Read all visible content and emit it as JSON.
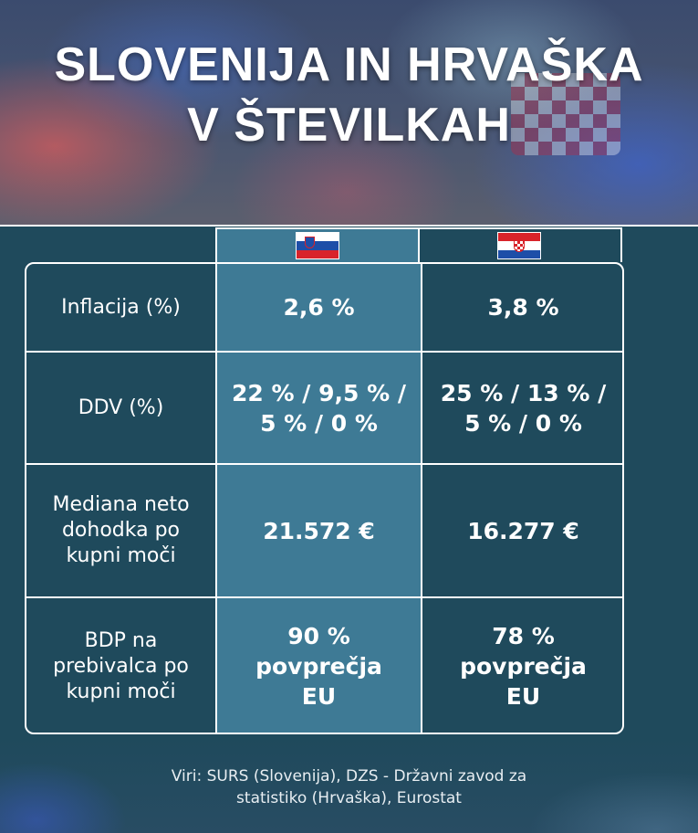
{
  "title_line1": "SLOVENIJA IN HRVAŠKA",
  "title_line2": "V ŠTEVILKAH",
  "columns": [
    {
      "country_flag": "slovenia-flag-icon"
    },
    {
      "country_flag": "croatia-flag-icon"
    }
  ],
  "rows": [
    {
      "label": [
        "Inflacija (%)"
      ],
      "slovenia": [
        "2,6 %"
      ],
      "croatia": [
        "3,8 %"
      ]
    },
    {
      "label": [
        "DDV (%)"
      ],
      "slovenia": [
        "22 % / 9,5 % /",
        "5 % / 0 %"
      ],
      "croatia": [
        "25 % / 13 % /",
        "5 % / 0 %"
      ]
    },
    {
      "label": [
        "Mediana neto",
        "dohodka po",
        "kupni moči"
      ],
      "slovenia": [
        "21.572 €"
      ],
      "croatia": [
        "16.277 €"
      ]
    },
    {
      "label": [
        "BDP na",
        "prebivalca po",
        "kupni moči"
      ],
      "slovenia": [
        "90 %",
        "povprečja",
        "EU"
      ],
      "croatia": [
        "78 %",
        "povprečja",
        "EU"
      ]
    }
  ],
  "source": [
    "Viri: SURS (Slovenija), DZS - Državni zavod za",
    "statistiko (Hrvaška), Eurostat"
  ],
  "colors": {
    "background": "#1f4a5c",
    "slovenia_column": "#3e7a95",
    "text": "#ffffff"
  }
}
